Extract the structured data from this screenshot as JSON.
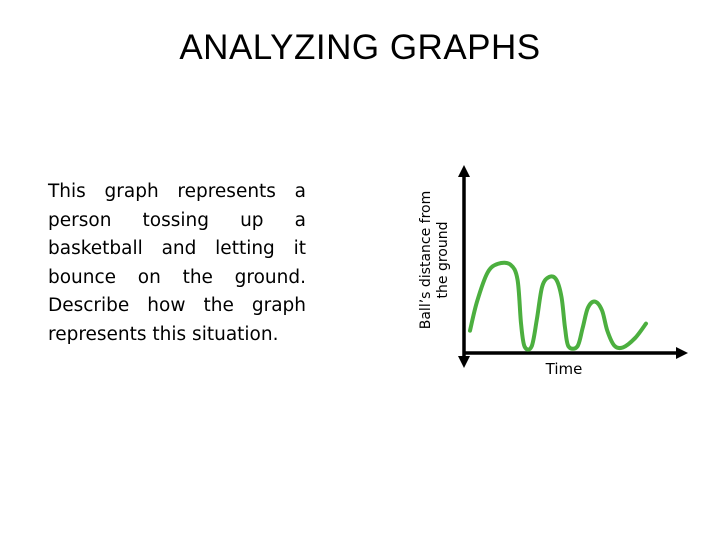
{
  "slide": {
    "title": "ANALYZING GRAPHS",
    "prompt": "This graph represents a person tossing up a basketball and letting it bounce on the ground. Describe how the graph represents this situation."
  },
  "chart_data": {
    "type": "line",
    "ylabel_lines": [
      "Ball’s distance from",
      "the ground"
    ],
    "xlabel": "Time",
    "grid": false,
    "axis_ticks": false,
    "line_color": "#4caf3f",
    "axis_color": "#000000",
    "series": [
      {
        "description_points": [
          [
            0.0,
            0.22
          ],
          [
            0.04,
            0.55
          ],
          [
            0.1,
            0.88
          ],
          [
            0.16,
            0.98
          ],
          [
            0.23,
            0.97
          ],
          [
            0.27,
            0.8
          ],
          [
            0.29,
            0.3
          ],
          [
            0.31,
            0.04
          ],
          [
            0.35,
            0.04
          ],
          [
            0.38,
            0.35
          ],
          [
            0.41,
            0.72
          ],
          [
            0.45,
            0.83
          ],
          [
            0.49,
            0.8
          ],
          [
            0.52,
            0.6
          ],
          [
            0.54,
            0.25
          ],
          [
            0.56,
            0.04
          ],
          [
            0.61,
            0.04
          ],
          [
            0.64,
            0.25
          ],
          [
            0.67,
            0.48
          ],
          [
            0.71,
            0.55
          ],
          [
            0.75,
            0.45
          ],
          [
            0.78,
            0.22
          ],
          [
            0.82,
            0.05
          ],
          [
            0.87,
            0.03
          ],
          [
            0.94,
            0.14
          ],
          [
            1.0,
            0.3
          ]
        ]
      }
    ]
  }
}
